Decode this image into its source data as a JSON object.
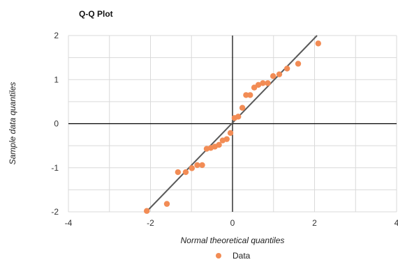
{
  "chart_data": {
    "type": "scatter",
    "title": "Q-Q Plot",
    "xlabel": "Normal theoretical quantiles",
    "ylabel": "Sample data quantiles",
    "xlim": [
      -4,
      4
    ],
    "ylim": [
      -2,
      2
    ],
    "x_ticks": [
      -4,
      -2,
      0,
      2,
      4
    ],
    "y_ticks": [
      -2,
      -1,
      0,
      1,
      2
    ],
    "grid": true,
    "legend_position": "bottom",
    "series": [
      {
        "name": "Data",
        "color": "#F28C55",
        "points": [
          {
            "x": -2.09,
            "y": -1.98
          },
          {
            "x": -1.6,
            "y": -1.82
          },
          {
            "x": -1.33,
            "y": -1.1
          },
          {
            "x": -1.14,
            "y": -1.1
          },
          {
            "x": -0.99,
            "y": -1.01
          },
          {
            "x": -0.86,
            "y": -0.94
          },
          {
            "x": -0.74,
            "y": -0.94
          },
          {
            "x": -0.63,
            "y": -0.57
          },
          {
            "x": -0.53,
            "y": -0.55
          },
          {
            "x": -0.43,
            "y": -0.52
          },
          {
            "x": -0.33,
            "y": -0.48
          },
          {
            "x": -0.24,
            "y": -0.38
          },
          {
            "x": -0.14,
            "y": -0.35
          },
          {
            "x": -0.05,
            "y": -0.21
          },
          {
            "x": 0.05,
            "y": 0.13
          },
          {
            "x": 0.14,
            "y": 0.16
          },
          {
            "x": 0.24,
            "y": 0.36
          },
          {
            "x": 0.33,
            "y": 0.65
          },
          {
            "x": 0.43,
            "y": 0.65
          },
          {
            "x": 0.53,
            "y": 0.82
          },
          {
            "x": 0.63,
            "y": 0.88
          },
          {
            "x": 0.74,
            "y": 0.92
          },
          {
            "x": 0.86,
            "y": 0.92
          },
          {
            "x": 0.99,
            "y": 1.08
          },
          {
            "x": 1.14,
            "y": 1.12
          },
          {
            "x": 1.33,
            "y": 1.25
          },
          {
            "x": 1.6,
            "y": 1.36
          },
          {
            "x": 2.09,
            "y": 1.82
          }
        ]
      }
    ],
    "reference_line": {
      "color": "#595959",
      "from": {
        "x": -2.1,
        "y": -2.0
      },
      "to": {
        "x": 2.06,
        "y": 2.0
      }
    }
  }
}
